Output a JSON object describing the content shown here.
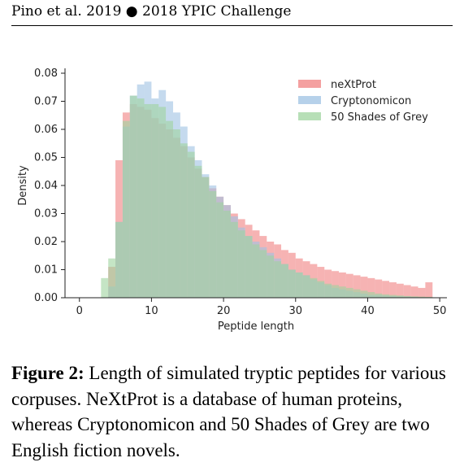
{
  "header": {
    "text": "Pino et al. 2019 ● 2018 YPIC Challenge"
  },
  "chart_data": {
    "type": "histogram",
    "xlabel": "Peptide length",
    "ylabel": "Density",
    "xlim": [
      -2,
      51
    ],
    "ylim": [
      0,
      0.08
    ],
    "xticks": [
      0,
      10,
      20,
      30,
      40,
      50
    ],
    "yticks": [
      "0.00",
      "0.01",
      "0.02",
      "0.03",
      "0.04",
      "0.05",
      "0.06",
      "0.07",
      "0.08"
    ],
    "bin_width": 1,
    "bin_starts": [
      3,
      4,
      5,
      6,
      7,
      8,
      9,
      10,
      11,
      12,
      13,
      14,
      15,
      16,
      17,
      18,
      19,
      20,
      21,
      22,
      23,
      24,
      25,
      26,
      27,
      28,
      29,
      30,
      31,
      32,
      33,
      34,
      35,
      36,
      37,
      38,
      39,
      40,
      41,
      42,
      43,
      44,
      45,
      46,
      47,
      48
    ],
    "legend_position": "upper right",
    "series": [
      {
        "name": "neXtProt",
        "color": "#f08080",
        "values": [
          0.0,
          0.011,
          0.049,
          0.066,
          0.069,
          0.068,
          0.067,
          0.064,
          0.062,
          0.06,
          0.057,
          0.054,
          0.05,
          0.046,
          0.043,
          0.039,
          0.036,
          0.033,
          0.03,
          0.028,
          0.026,
          0.024,
          0.022,
          0.02,
          0.019,
          0.017,
          0.016,
          0.014,
          0.013,
          0.012,
          0.011,
          0.01,
          0.0095,
          0.009,
          0.0085,
          0.008,
          0.0075,
          0.007,
          0.0065,
          0.006,
          0.0055,
          0.005,
          0.0045,
          0.004,
          0.0035,
          0.0055
        ]
      },
      {
        "name": "Cryptonomicon",
        "color": "#9ec1e3",
        "values": [
          0.0,
          0.004,
          0.027,
          0.061,
          0.072,
          0.076,
          0.077,
          0.071,
          0.074,
          0.07,
          0.066,
          0.061,
          0.054,
          0.049,
          0.044,
          0.04,
          0.036,
          0.033,
          0.029,
          0.025,
          0.022,
          0.02,
          0.018,
          0.016,
          0.014,
          0.012,
          0.01,
          0.009,
          0.008,
          0.0065,
          0.0055,
          0.0045,
          0.0035,
          0.003,
          0.0025,
          0.002,
          0.0015,
          0.001,
          0.001,
          0.0008,
          0.0006,
          0.0005,
          0.0004,
          0.0003,
          0.0002,
          0.0002
        ]
      },
      {
        "name": "50 Shades of Grey",
        "color": "#9fd49f",
        "values": [
          0.007,
          0.014,
          0.027,
          0.063,
          0.072,
          0.071,
          0.069,
          0.069,
          0.068,
          0.063,
          0.06,
          0.055,
          0.052,
          0.047,
          0.043,
          0.038,
          0.034,
          0.031,
          0.027,
          0.024,
          0.022,
          0.019,
          0.017,
          0.015,
          0.013,
          0.012,
          0.01,
          0.009,
          0.008,
          0.007,
          0.006,
          0.005,
          0.0045,
          0.004,
          0.0035,
          0.003,
          0.0025,
          0.002,
          0.0015,
          0.0012,
          0.001,
          0.0008,
          0.0006,
          0.0005,
          0.0004,
          0.0003
        ]
      }
    ]
  },
  "caption": {
    "label": "Figure 2:",
    "text": " Length of simulated tryptic peptides for various corpuses. NeXtProt is a database of human proteins, whereas Cryptonomicon and 50 Shades of Grey are two English fiction novels."
  }
}
